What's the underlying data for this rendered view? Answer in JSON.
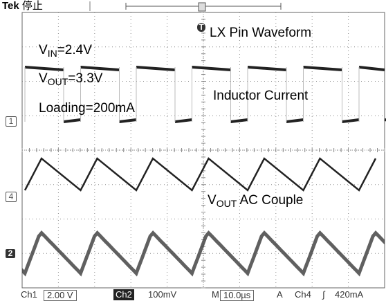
{
  "header": {
    "brand": "Tek",
    "status": "停止"
  },
  "annotations": {
    "vin_main": "V",
    "vin_sub": "IN",
    "vin_value": "=2.4V",
    "vout_main": "V",
    "vout_sub": "OUT",
    "vout_value": "=3.3V",
    "loading": "Loading=200mA",
    "lx_waveform": "LX Pin Waveform",
    "inductor_current": "Inductor Current",
    "vout_ac_main": "V",
    "vout_ac_sub": "OUT",
    "vout_ac_rest": " AC Couple"
  },
  "channel_markers": {
    "ch1": "1",
    "ch4": "4",
    "ch2": "2",
    "trigger": "T"
  },
  "readout": {
    "ch1_label": "Ch1",
    "ch1_scale": "2.00 V",
    "ch2_label": "Ch2",
    "ch2_scale": "100mV",
    "time_label": "M",
    "time_scale": "10.0µs",
    "trig_mode": "A",
    "trig_source": "Ch4",
    "trig_slope": "∫",
    "trig_level": "420mA"
  },
  "colors": {
    "trace": "#222222",
    "grid": "#888888",
    "background": "#ffffff"
  }
}
